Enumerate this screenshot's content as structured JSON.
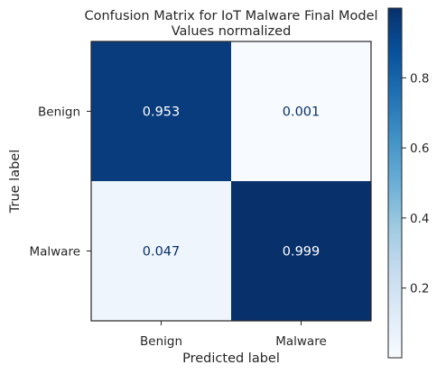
{
  "chart_data": {
    "type": "heatmap",
    "title": "Confusion Matrix for IoT Malware Final Model",
    "subtitle": "Values normalized",
    "xlabel": "Predicted label",
    "ylabel": "True label",
    "x_categories": [
      "Benign",
      "Malware"
    ],
    "y_categories": [
      "Benign",
      "Malware"
    ],
    "values": [
      [
        0.953,
        0.001
      ],
      [
        0.047,
        0.999
      ]
    ],
    "value_labels": [
      [
        "0.953",
        "0.001"
      ],
      [
        "0.047",
        "0.999"
      ]
    ],
    "colormap": "Blues",
    "colorbar": {
      "range": [
        0.001,
        0.999
      ],
      "ticks": [
        0.2,
        0.4,
        0.6,
        0.8
      ],
      "tick_labels": [
        "0.2",
        "0.4",
        "0.6",
        "0.8"
      ]
    },
    "grid": false
  }
}
